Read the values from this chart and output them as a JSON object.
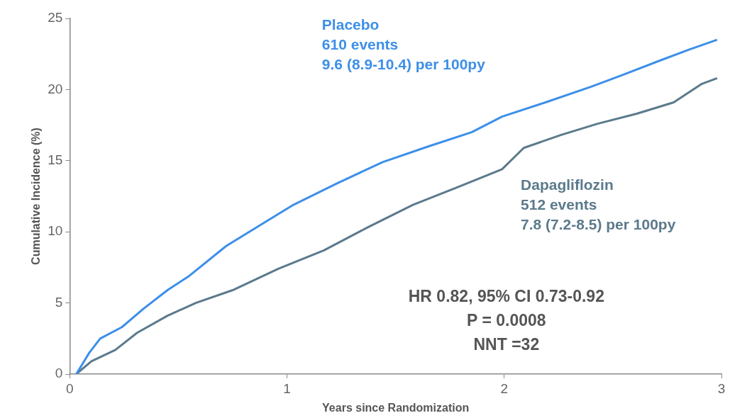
{
  "chart_data": {
    "type": "line",
    "xlabel": "Years since Randomization",
    "ylabel": "Cumulative Incidence (%)",
    "xlim": [
      0,
      3
    ],
    "ylim": [
      0,
      25
    ],
    "xticks": [
      0,
      1,
      2,
      3
    ],
    "yticks": [
      0,
      5,
      10,
      15,
      20,
      25
    ],
    "grid": false,
    "legend": false,
    "marker": "none",
    "line_style": "solid",
    "series": [
      {
        "name": "Placebo",
        "color": "#3d8fe8",
        "x": [
          0.03,
          0.09,
          0.14,
          0.24,
          0.34,
          0.45,
          0.55,
          0.72,
          0.89,
          1.03,
          1.23,
          1.44,
          1.65,
          1.85,
          1.99,
          2.19,
          2.4,
          2.54,
          2.71,
          2.85,
          2.98
        ],
        "values": [
          0,
          1.5,
          2.5,
          3.3,
          4.6,
          5.9,
          6.9,
          9,
          10.6,
          11.9,
          13.4,
          14.9,
          16,
          17,
          18.1,
          19.1,
          20.2,
          21,
          22,
          22.8,
          23.5
        ]
      },
      {
        "name": "Dapagliflozin",
        "color": "#5b7a8c",
        "x": [
          0.03,
          0.1,
          0.21,
          0.31,
          0.45,
          0.58,
          0.75,
          0.96,
          1.17,
          1.37,
          1.58,
          1.78,
          1.99,
          2.09,
          2.26,
          2.43,
          2.61,
          2.78,
          2.91,
          2.98
        ],
        "values": [
          0,
          0.9,
          1.7,
          2.9,
          4.1,
          5,
          5.9,
          7.4,
          8.7,
          10.3,
          11.9,
          13.1,
          14.4,
          15.9,
          16.8,
          17.6,
          18.3,
          19.1,
          20.4,
          20.8
        ]
      }
    ],
    "annotations": [
      "610 events",
      "9.6 (8.9-10.4) per 100py",
      "512 events",
      "7.8 (7.2-8.5) per 100py",
      "HR 0.82, 95% CI 0.73-0.92",
      "P = 0.0008",
      "NNT =32"
    ]
  }
}
